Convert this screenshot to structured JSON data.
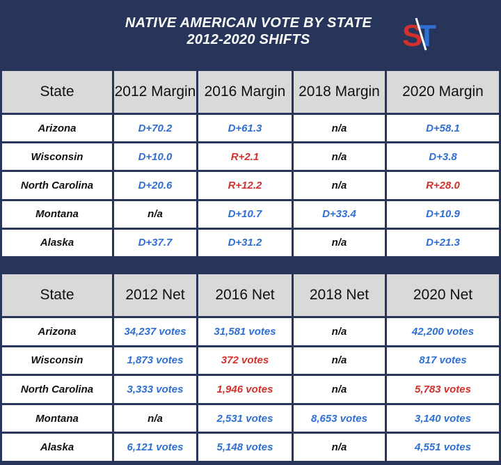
{
  "title_line1": "NATIVE AMERICAN VOTE BY STATE",
  "title_line2": "2012-2020 SHIFTS",
  "logo_text": "ST",
  "colors": {
    "background": "#263559",
    "header_cell": "#d9d9d9",
    "democrat": "#2e6fd1",
    "republican": "#d0312d"
  },
  "chart_data": [
    {
      "type": "table",
      "columns": [
        "State",
        "2012 Margin",
        "2016 Margin",
        "2018 Margin",
        "2020 Margin"
      ],
      "rows": [
        [
          "Arizona",
          "D+70.2",
          "D+61.3",
          "n/a",
          "D+58.1"
        ],
        [
          "Wisconsin",
          "D+10.0",
          "R+2.1",
          "n/a",
          "D+3.8"
        ],
        [
          "North Carolina",
          "D+20.6",
          "R+12.2",
          "n/a",
          "R+28.0"
        ],
        [
          "Montana",
          "n/a",
          "D+10.7",
          "D+33.4",
          "D+10.9"
        ],
        [
          "Alaska",
          "D+37.7",
          "D+31.2",
          "n/a",
          "D+21.3"
        ]
      ],
      "cell_party": [
        [
          "D",
          "D",
          "",
          "D"
        ],
        [
          "D",
          "R",
          "",
          "D"
        ],
        [
          "D",
          "R",
          "",
          "R"
        ],
        [
          "",
          "D",
          "D",
          "D"
        ],
        [
          "D",
          "D",
          "",
          "D"
        ]
      ]
    },
    {
      "type": "table",
      "columns": [
        "State",
        "2012 Net",
        "2016 Net",
        "2018 Net",
        "2020 Net"
      ],
      "rows": [
        [
          "Arizona",
          "34,237 votes",
          "31,581 votes",
          "n/a",
          "42,200 votes"
        ],
        [
          "Wisconsin",
          "1,873 votes",
          "372 votes",
          "n/a",
          "817 votes"
        ],
        [
          "North Carolina",
          "3,333 votes",
          "1,946 votes",
          "n/a",
          "5,783 votes"
        ],
        [
          "Montana",
          "n/a",
          "2,531 votes",
          "8,653 votes",
          "3,140 votes"
        ],
        [
          "Alaska",
          "6,121 votes",
          "5,148 votes",
          "n/a",
          "4,551 votes"
        ]
      ],
      "cell_party": [
        [
          "D",
          "D",
          "",
          "D"
        ],
        [
          "D",
          "R",
          "",
          "D"
        ],
        [
          "D",
          "R",
          "",
          "R"
        ],
        [
          "",
          "D",
          "D",
          "D"
        ],
        [
          "D",
          "D",
          "",
          "D"
        ]
      ]
    }
  ]
}
